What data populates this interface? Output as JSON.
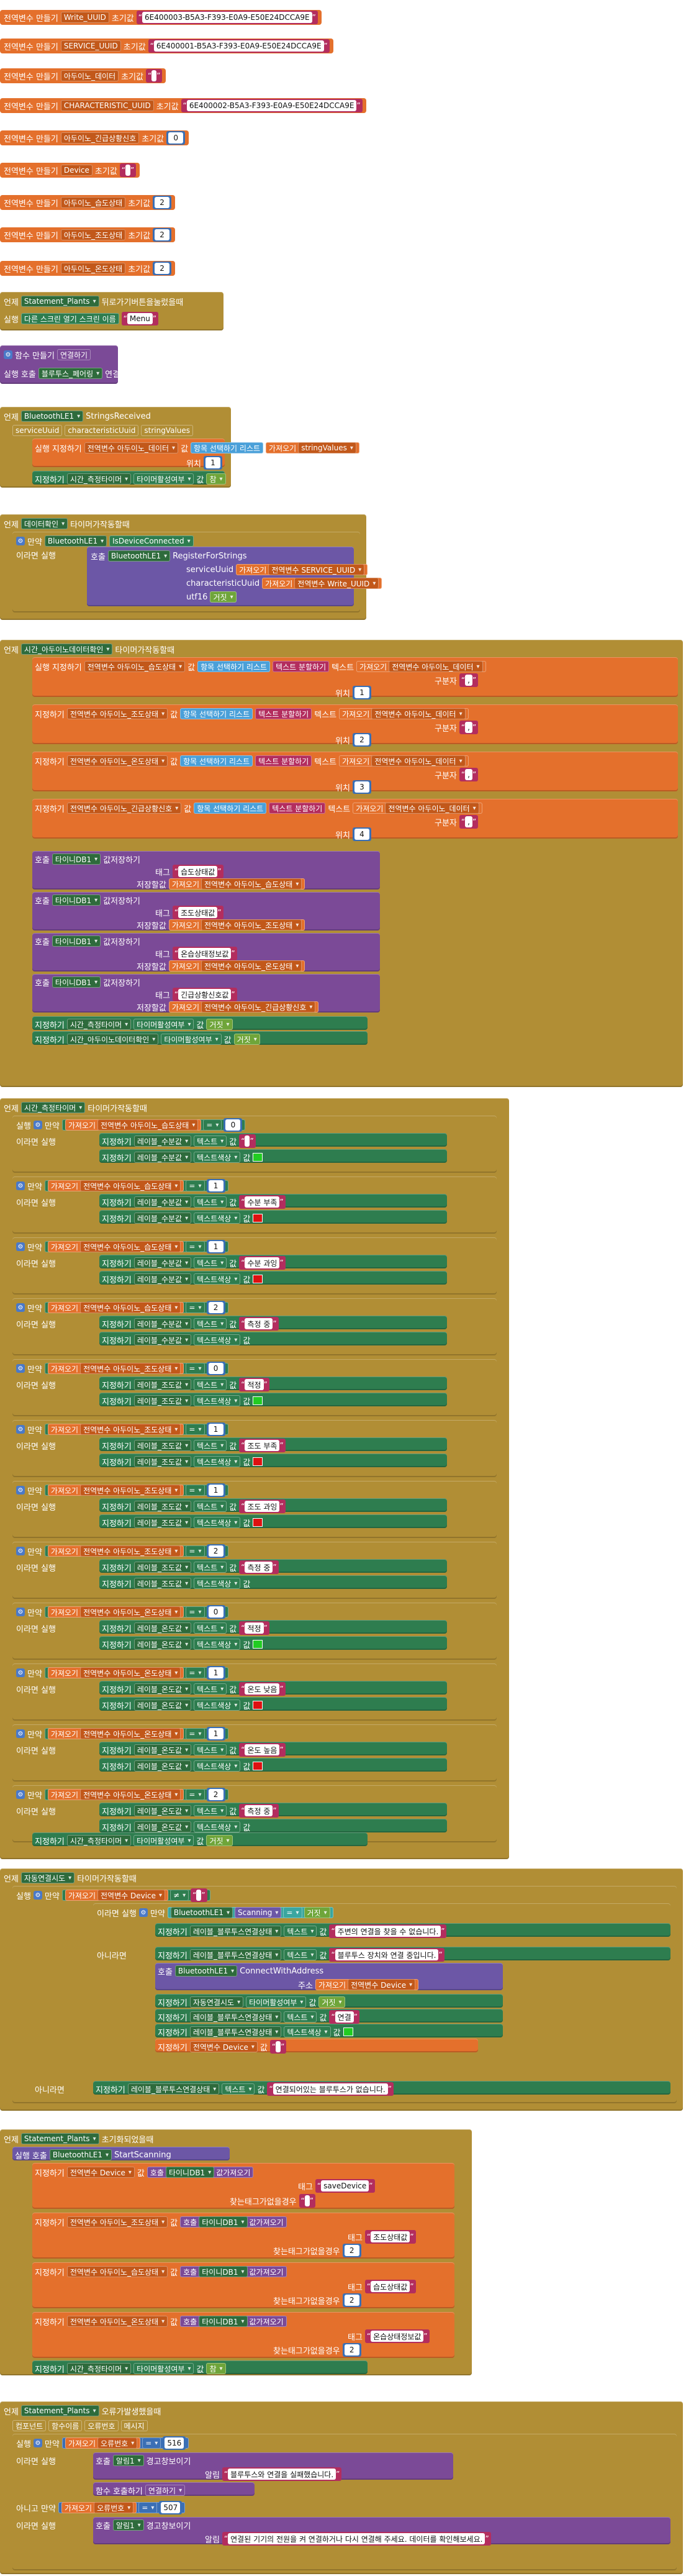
{
  "colors": {
    "variable": "#e4702c",
    "event": "#b18e35",
    "procedure": "#7b4a97",
    "list": "#4aa0d9",
    "text": "#b32d5e",
    "math": "#3a6fb5",
    "logic": "#6fa53a",
    "component": "#2e7d4f",
    "green": "#22cc22",
    "red": "#dd1111"
  },
  "kw": {
    "global_init": "전역변수 만들기",
    "init_to": "초기값",
    "set": "지정하기",
    "get": "가져오기",
    "value": "값",
    "text": "텍스트",
    "delimiter": "구분자",
    "index": "위치",
    "call": "호출",
    "when": "언제",
    "do": "실행",
    "if": "만약",
    "then": "이라면 실행",
    "else_if": "아니고 만약",
    "else": "아니라면",
    "list_pick": "항목 선택하기 리스트",
    "split": "텍스트 분할하기",
    "otherwise": "아니라면",
    "and": "그리고",
    "true": "거짓"
  },
  "globals": [
    {
      "name": "Write_UUID",
      "value": "6E400003-B5A3-F393-E0A9-E50E24DCCA9E"
    },
    {
      "name": "SERVICE_UUID",
      "value": "6E400001-B5A3-F393-E0A9-E50E24DCCA9E"
    },
    {
      "name": "아두이노_데이터",
      "value": ""
    },
    {
      "name": "CHARACTERISTIC_UUID",
      "value": "6E400002-B5A3-F393-E0A9-E50E24DCCA9E"
    },
    {
      "name": "아두이노_긴급상황신호",
      "value": "0"
    },
    {
      "name": "Device",
      "value": ""
    },
    {
      "name": "아두이노_습도상태",
      "value": "2"
    },
    {
      "name": "아두이노_조도상태",
      "value": "2"
    },
    {
      "name": "아두이노_온도상태",
      "value": "2"
    }
  ],
  "ev_backpressed": {
    "component": "Statement_Plants",
    "event": "뒤로가기버튼을눌렀을때",
    "call": "다른 스크린 열기  스크린 이름",
    "screen": "Menu"
  },
  "proc_connect": {
    "title": "함수 만들기",
    "name": "연결하기",
    "call_target": "블루투스_페어링",
    "call_method": "연결하기"
  },
  "ev_strings": {
    "component": "BluetoothLE1",
    "event": "StringsReceived",
    "params": [
      "serviceUuid",
      "characteristicUuid",
      "stringValues"
    ],
    "get_var": "stringValues",
    "pos": "1",
    "var": "전역변수 아두이노_데이터",
    "set_target": "시간_측정타이머",
    "set_prop": "타이머활성여부",
    "flag": "참"
  },
  "ev_timer1": {
    "component": "데이터확인",
    "event": "타이머가작동할때",
    "if_comp": "BluetoothLE1",
    "if_prop": "IsDeviceConnected",
    "call": "BluetoothLE1",
    "method": "RegisterForStrings",
    "args": [
      {
        "label": "serviceUuid",
        "value": "전역변수 SERVICE_UUID"
      },
      {
        "label": "characteristicUuid",
        "value": "전역변수 Write_UUID"
      },
      {
        "label": "utf16",
        "value": "거짓"
      }
    ]
  },
  "ev_timer2": {
    "component": "시간_아두이노데이터확인",
    "event": "타이머가작동할때",
    "assignments": [
      {
        "var": "전역변수 아두이노_습도상태",
        "pos": "1"
      },
      {
        "var": "전역변수 아두이노_조도상태",
        "pos": "2"
      },
      {
        "var": "전역변수 아두이노_온도상태",
        "pos": "3"
      },
      {
        "var": "전역변수 아두이노_긴급상황신호",
        "pos": "4"
      }
    ],
    "data_var": "전역변수 아두이노_데이터",
    "sep": ",",
    "stores": [
      {
        "tag": "습도상태값",
        "var": "전역변수 아두이노_습도상태"
      },
      {
        "tag": "조도상태값",
        "var": "전역변수 아두이노_조도상태"
      },
      {
        "tag": "온습상태정보값",
        "var": "전역변수 아두이노_온도상태"
      },
      {
        "tag": "긴급상황신호값",
        "var": "전역변수 아두이노_긴급상황신호"
      }
    ],
    "db": "타이니DB1",
    "store_call": "값저장하기",
    "tag_label": "태그",
    "store_label": "저장할값",
    "end1": "시간_측정타이머",
    "end2": "시간_아두이노데이터확인",
    "end_prop": "타이머활성여부",
    "end_val": "거짓"
  },
  "ev_timer3": {
    "component": "시간_측정타이머",
    "event": "타이머가작동할때",
    "conds": [
      {
        "var": "전역변수 아두이노_습도상태",
        "eq": "0",
        "lbl": "레이블_수분값",
        "msg": "",
        "color": "green"
      },
      {
        "var": "전역변수 아두이노_습도상태",
        "eq": "1",
        "lbl": "레이블_수분값",
        "msg": "수분 부족",
        "color": "red"
      },
      {
        "var": "전역변수 아두이노_습도상태",
        "eq": "1",
        "lbl": "레이블_수분값",
        "msg": "수분 과잉",
        "color": "red"
      },
      {
        "var": "전역변수 아두이노_습도상태",
        "eq": "2",
        "lbl": "레이블_수분값",
        "msg": "측정 중",
        "color": ""
      },
      {
        "var": "전역변수 아두이노_조도상태",
        "eq": "0",
        "lbl": "레이블_조도값",
        "msg": "적정",
        "color": "green"
      },
      {
        "var": "전역변수 아두이노_조도상태",
        "eq": "1",
        "lbl": "레이블_조도값",
        "msg": "조도 부족",
        "color": "red"
      },
      {
        "var": "전역변수 아두이노_조도상태",
        "eq": "1",
        "lbl": "레이블_조도값",
        "msg": "조도 과잉",
        "color": "red"
      },
      {
        "var": "전역변수 아두이노_조도상태",
        "eq": "2",
        "lbl": "레이블_조도값",
        "msg": "측정 중",
        "color": ""
      },
      {
        "var": "전역변수 아두이노_온도상태",
        "eq": "0",
        "lbl": "레이블_온도값",
        "msg": "적정",
        "color": "green"
      },
      {
        "var": "전역변수 아두이노_온도상태",
        "eq": "1",
        "lbl": "레이블_온도값",
        "msg": "온도 낮음",
        "color": "red"
      },
      {
        "var": "전역변수 아두이노_온도상태",
        "eq": "1",
        "lbl": "레이블_온도값",
        "msg": "온도 높음",
        "color": "red"
      },
      {
        "var": "전역변수 아두이노_온도상태",
        "eq": "2",
        "lbl": "레이블_온도값",
        "msg": "측정 중",
        "color": ""
      }
    ],
    "eq_op": "=",
    "prop_text": "텍스트",
    "prop_color": "텍스트색상",
    "end_target": "시간_측정타이머",
    "end_prop": "타이머활성여부",
    "end_val": "거짓"
  },
  "ev_timer4": {
    "component": "자동연결시도",
    "event": "타이머가작동할때",
    "if_var": "전역변수 Device",
    "neq": "≠",
    "empty": "",
    "inner_comp": "BluetoothLE1",
    "inner_prop": "Scanning",
    "eq": "=",
    "false": "거짓",
    "label": "레이블_블루투스연결상태",
    "msg1": "주변의 연결을 찾을 수 없습니다.",
    "msg2": "블루투스 장치와 연결 중입니다.",
    "connect": "BluetoothLE1",
    "connect_method": "ConnectWithAddress",
    "addr_label": "주소",
    "addr_var": "전역변수 Device",
    "set1": "자동연결시도",
    "set1_prop": "타이머활성여부",
    "set1_val": "거짓",
    "set2": "레이블_블루투스연결상태",
    "set2_prop": "텍스트",
    "set2_val": "연결",
    "set3": "레이블_블루투스연결상태",
    "set3_prop": "텍스트색상",
    "set4": "전역변수 Device",
    "msg3": "연결되어있는 블루투스가 없습니다."
  },
  "ev_init": {
    "component": "Statement_Plants",
    "event": "초기화되었을때",
    "call": "BluetoothLE1",
    "method": "StartScanning",
    "device_var": "전역변수 Device",
    "db": "타이니DB1",
    "get_call": "값가져오기",
    "tag_label": "태그",
    "ret_label": "찾는태그가없을경우",
    "device_tag": "saveDevice",
    "items": [
      {
        "var": "전역변수 아두이노_조도상태",
        "tag": "조도상태값",
        "def": "2"
      },
      {
        "var": "전역변수 아두이노_습도상태",
        "tag": "습도상태값",
        "def": "2"
      },
      {
        "var": "전역변수 아두이노_온도상태",
        "tag": "온습상태정보값",
        "def": "2"
      }
    ],
    "end_target": "시간_측정타이머",
    "end_prop": "타이머활성여부",
    "end_val": "참"
  },
  "ev_error": {
    "component": "Statement_Plants",
    "event": "오류가발생했을때",
    "params": [
      "컴포넌트",
      "함수이름",
      "오류번호",
      "메시지"
    ],
    "err_var": "오류번호",
    "eq": "=",
    "code1": "516",
    "notifier": "알림1",
    "alert": "경고창보이기",
    "msg_label": "알림",
    "msg1": "블루투스와 연결을 실패했습니다.",
    "proc": "연결하기",
    "proc_call": "함수 호출하기",
    "code2": "507",
    "msg2": "연결된 기기의 전원을 켜 연결하거나 다시 연결해 주세요. 데이터를 확인해보세요."
  }
}
